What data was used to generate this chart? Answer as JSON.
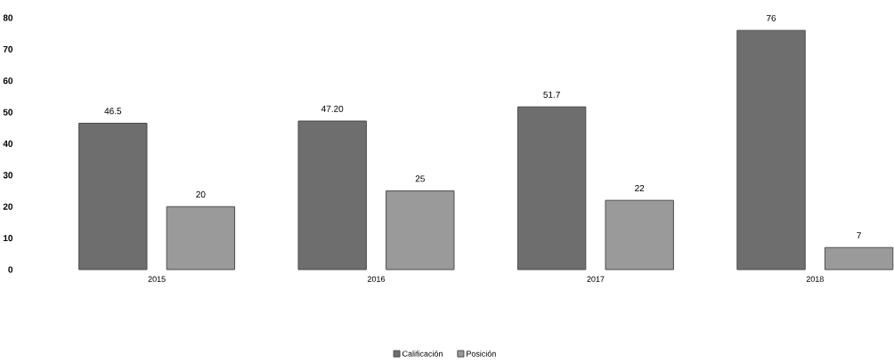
{
  "chart_data": {
    "type": "bar",
    "categories": [
      "2015",
      "2016",
      "2017",
      "2018"
    ],
    "series": [
      {
        "name": "Calificación",
        "color": "#6e6e6e",
        "values": [
          46.5,
          47.2,
          51.7,
          76
        ],
        "value_labels": [
          "46.5",
          "47.20",
          "51.7",
          "76"
        ]
      },
      {
        "name": "Posición",
        "color": "#9a9a9a",
        "values": [
          20,
          25,
          22,
          7
        ],
        "value_labels": [
          "20",
          "25",
          "22",
          "7"
        ]
      }
    ],
    "ylim": [
      0,
      80
    ],
    "yticks": [
      0,
      10,
      20,
      30,
      40,
      50,
      60,
      70,
      80
    ],
    "grid": false,
    "legend": "bottom"
  }
}
